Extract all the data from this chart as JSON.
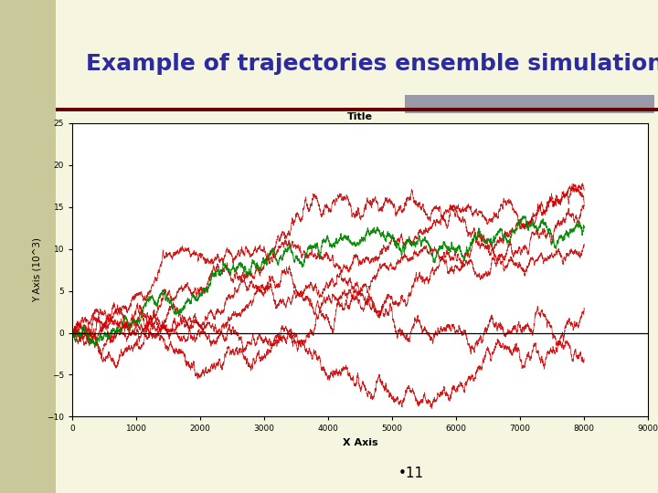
{
  "slide_title": "Example of trajectories ensemble simulation",
  "slide_bg_main": "#f5f5e0",
  "slide_bg_left": "#c8c89a",
  "chart_title": "Title",
  "xlabel": "X Axis",
  "ylabel": "Y Axis (10^3)",
  "xlim": [
    0,
    9000
  ],
  "ylim": [
    -10,
    25
  ],
  "xticks": [
    0,
    1000,
    2000,
    3000,
    4000,
    5000,
    6000,
    7000,
    8000,
    9000
  ],
  "yticks": [
    -10,
    -5,
    0,
    5,
    10,
    15,
    20,
    25
  ],
  "n_steps": 8001,
  "red_color": "#cc0000",
  "green_color": "#008800",
  "hline_color": "#000000",
  "page_number": "11",
  "title_color": "#2b2b9e",
  "title_fontsize": 18,
  "chart_title_fontsize": 8,
  "gray_bar_color": "#9999aa",
  "rule_color": "#660000",
  "chart_bg": "#ffffff"
}
